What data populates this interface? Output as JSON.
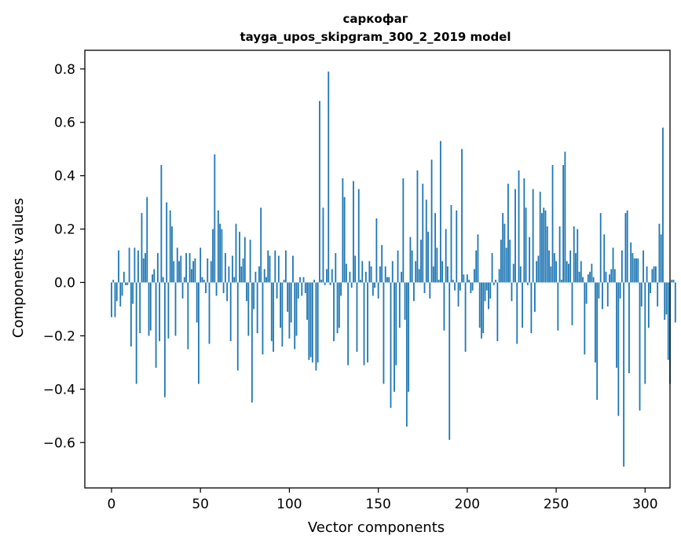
{
  "chart_data": {
    "type": "bar",
    "title": "саркофаг",
    "subtitle": "tayga_upos_skipgram_300_2_2019 model",
    "xlabel": "Vector components",
    "ylabel": "Components values",
    "xlim": [
      -15,
      314
    ],
    "ylim": [
      -0.77,
      0.87
    ],
    "xticks": [
      0,
      50,
      100,
      150,
      200,
      250,
      300
    ],
    "yticks": [
      -0.6,
      -0.4,
      -0.2,
      0.0,
      0.2,
      0.4,
      0.6,
      0.8
    ],
    "xtick_labels": [
      "0",
      "50",
      "100",
      "150",
      "200",
      "250",
      "300"
    ],
    "ytick_labels": [
      "−0.6",
      "−0.4",
      "−0.2",
      "0.0",
      "0.2",
      "0.4",
      "0.6",
      "0.8"
    ],
    "bar_color": "#1f77b4",
    "grid": false,
    "values": [
      -0.13,
      0.01,
      -0.13,
      -0.07,
      0.12,
      -0.09,
      -0.05,
      0.04,
      -0.01,
      -0.01,
      0.13,
      -0.24,
      -0.08,
      0.13,
      -0.38,
      0.12,
      -0.19,
      0.26,
      0.09,
      0.11,
      0.32,
      -0.2,
      -0.18,
      0.03,
      0.05,
      -0.32,
      0.11,
      -0.22,
      0.44,
      0.02,
      -0.43,
      0.3,
      -0.21,
      0.27,
      0.21,
      0.08,
      -0.2,
      0.13,
      0.08,
      0.1,
      -0.06,
      0.02,
      0.11,
      -0.25,
      0.11,
      0.05,
      0.08,
      0.09,
      -0.15,
      -0.38,
      0.13,
      0.02,
      0.01,
      -0.04,
      0.09,
      -0.23,
      0.08,
      0.2,
      0.48,
      -0.05,
      0.27,
      0.22,
      0.2,
      -0.04,
      0.11,
      -0.07,
      0.06,
      -0.22,
      0.1,
      0.02,
      0.22,
      -0.33,
      0.19,
      0.06,
      0.09,
      0.17,
      -0.07,
      -0.2,
      0.16,
      -0.45,
      -0.1,
      0.04,
      -0.19,
      0.06,
      0.28,
      -0.27,
      0.05,
      0.02,
      0.12,
      0.1,
      -0.22,
      -0.26,
      0.12,
      -0.06,
      0.1,
      -0.17,
      -0.24,
      0.01,
      0.12,
      -0.11,
      -0.21,
      -0.15,
      0.1,
      -0.25,
      -0.2,
      -0.06,
      0.02,
      -0.05,
      0.02,
      -0.04,
      -0.14,
      -0.29,
      -0.28,
      -0.3,
      0.01,
      -0.33,
      -0.3,
      0.68,
      0.01,
      0.28,
      -0.01,
      0.05,
      0.79,
      -0.01,
      0.05,
      -0.22,
      0.11,
      -0.19,
      -0.17,
      -0.05,
      0.39,
      0.32,
      0.07,
      -0.31,
      0.04,
      -0.02,
      0.38,
      0.1,
      -0.26,
      0.35,
      0.01,
      0.08,
      -0.31,
      0.04,
      -0.3,
      0.08,
      0.06,
      -0.05,
      -0.02,
      0.24,
      -0.06,
      0.06,
      0.14,
      -0.38,
      0.06,
      0.02,
      0.02,
      -0.47,
      0.08,
      -0.41,
      -0.31,
      0.12,
      -0.17,
      0.04,
      0.39,
      -0.14,
      -0.54,
      -0.41,
      0.17,
      0.12,
      -0.07,
      0.08,
      0.42,
      0.05,
      0.16,
      0.37,
      -0.04,
      0.31,
      0.19,
      -0.06,
      0.46,
      0.06,
      0.26,
      0.13,
      0.01,
      0.53,
      0.08,
      -0.18,
      0.2,
      0.06,
      -0.59,
      0.29,
      0.01,
      -0.03,
      0.27,
      -0.09,
      -0.03,
      0.5,
      0.03,
      -0.26,
      0.03,
      0.01,
      -0.04,
      -0.03,
      0.05,
      0.12,
      0.18,
      -0.17,
      -0.21,
      -0.19,
      -0.07,
      -0.03,
      -0.1,
      -0.06,
      0.11,
      -0.01,
      0.01,
      -0.22,
      0.05,
      0.16,
      0.26,
      0.22,
      0.13,
      0.37,
      0.16,
      -0.07,
      0.07,
      0.35,
      -0.23,
      0.42,
      0.06,
      -0.17,
      0.39,
      0.28,
      -0.01,
      0.17,
      -0.19,
      0.35,
      -0.11,
      0.08,
      0.1,
      0.34,
      0.26,
      0.28,
      0.27,
      0.21,
      0.12,
      0.06,
      0.44,
      0.11,
      0.08,
      -0.18,
      0.21,
      0.01,
      0.44,
      0.49,
      0.08,
      0.07,
      0.12,
      -0.16,
      0.21,
      0.11,
      0.2,
      0.04,
      0.08,
      0.02,
      -0.27,
      -0.08,
      0.03,
      0.04,
      0.07,
      0.02,
      -0.3,
      -0.44,
      -0.06,
      0.26,
      -0.1,
      0.18,
      0.04,
      -0.09,
      0.03,
      0.05,
      0.13,
      0.05,
      -0.32,
      -0.5,
      -0.06,
      0.12,
      -0.69,
      0.26,
      0.27,
      -0.34,
      0.15,
      0.11,
      0.09,
      0.09,
      0.09,
      -0.48,
      -0.09,
      0.12,
      -0.38,
      0.06,
      -0.17,
      -0.04,
      0.05,
      0.06,
      0.06,
      -0.09,
      0.22,
      0.18,
      0.58,
      -0.14,
      -0.12,
      -0.29,
      -0.38,
      0.01,
      0.01,
      -0.15
    ]
  }
}
